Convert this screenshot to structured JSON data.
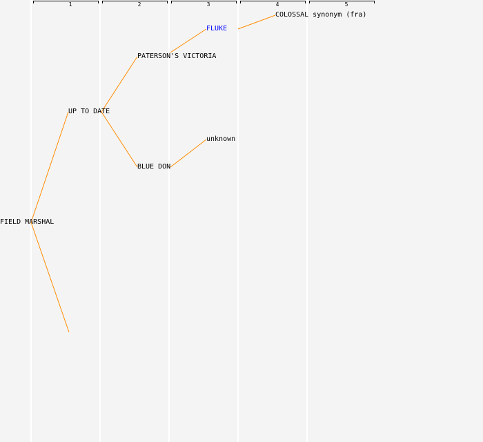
{
  "generations": [
    "1",
    "2",
    "3",
    "4",
    "5"
  ],
  "nodes": {
    "root": "FIELD MARSHAL",
    "sire": "UP TO DATE",
    "sire_sire": "PATERSON'S VICTORIA",
    "sire_dam": "BLUE DON",
    "sire_sire_sire": "FLUKE",
    "sire_dam_sire": "unknown",
    "fluke_sire": "COLOSSAL synonym (fra)"
  },
  "colors": {
    "link": "#ff8c00",
    "highlight": "#0000ff",
    "text": "#000000",
    "background": "#f4f4f4"
  }
}
